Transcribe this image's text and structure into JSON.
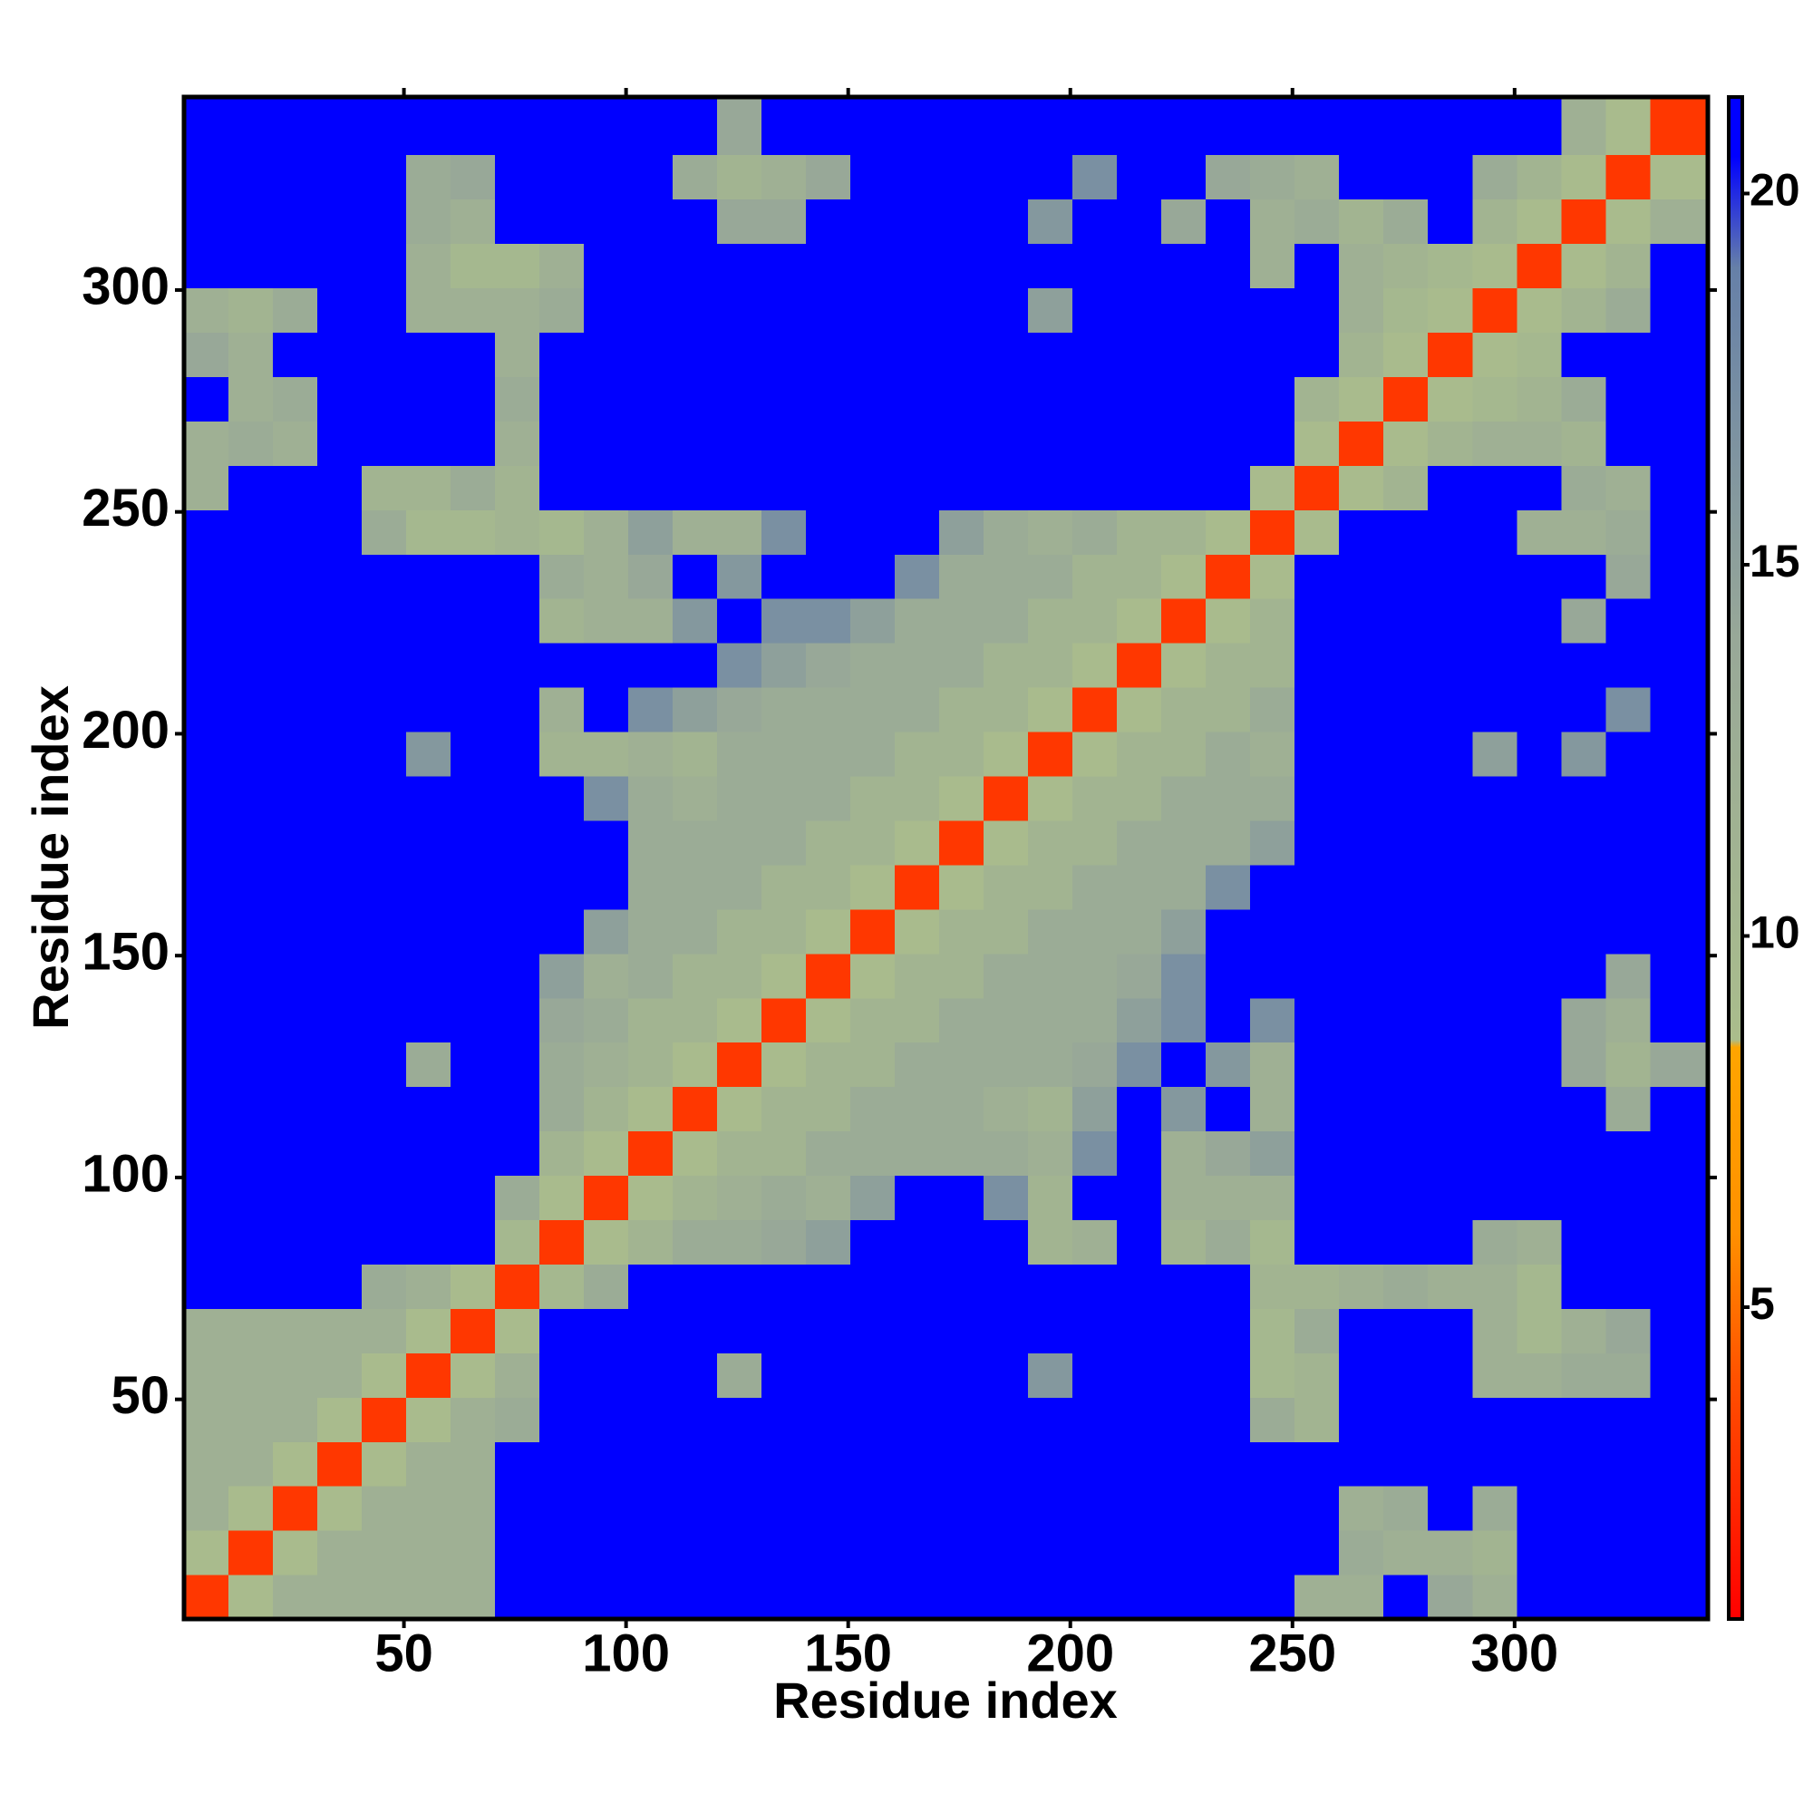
{
  "chart_data": {
    "type": "heatmap",
    "xlabel": "Residue index",
    "ylabel": "Residue index",
    "xlim": [
      0.5,
      343.5
    ],
    "ylim": [
      0.5,
      343.5
    ],
    "xticks": [
      50,
      100,
      150,
      200,
      250,
      300
    ],
    "yticks": [
      50,
      100,
      150,
      200,
      250,
      300
    ],
    "bins": [
      0.5,
      10.5,
      20.5,
      30.5,
      40.5,
      50.5,
      60.5,
      70.5,
      80.5,
      90.5,
      100.5,
      110.5,
      120.5,
      130.5,
      140.5,
      150.5,
      160.5,
      170.5,
      180.5,
      190.5,
      200.5,
      210.5,
      220.5,
      230.5,
      240.5,
      250.5,
      260.5,
      270.5,
      280.5,
      290.5,
      300.5,
      310.5,
      320.5,
      330.5,
      343.5
    ],
    "clim": [
      0.8,
      21.3
    ],
    "cticks": [
      5,
      10,
      15,
      20
    ],
    "colorscale": [
      [
        0.8,
        "#ff0000"
      ],
      [
        4,
        "#ff5000"
      ],
      [
        6,
        "#ff9000"
      ],
      [
        8.5,
        "#ffa500"
      ],
      [
        8.6,
        "#aabd8c"
      ],
      [
        14,
        "#98a898"
      ],
      [
        19,
        "#6680a8"
      ],
      [
        20.5,
        "#0000ff"
      ],
      [
        21.3,
        "#0000ff"
      ]
    ],
    "values": [
      [
        3,
        9,
        12,
        12,
        12,
        12,
        12,
        21,
        21,
        21,
        21,
        21,
        21,
        21,
        21,
        21,
        21,
        21,
        21,
        21,
        21,
        21,
        21,
        21,
        21,
        12,
        12,
        21,
        14,
        12,
        21,
        21,
        21,
        21
      ],
      [
        9,
        3,
        9,
        12,
        12,
        12,
        12,
        21,
        21,
        21,
        21,
        21,
        21,
        21,
        21,
        21,
        21,
        21,
        21,
        21,
        21,
        21,
        21,
        21,
        21,
        21,
        13,
        12,
        12,
        11,
        21,
        21,
        21,
        21
      ],
      [
        12,
        9,
        3,
        9,
        12,
        12,
        12,
        21,
        21,
        21,
        21,
        21,
        21,
        21,
        21,
        21,
        21,
        21,
        21,
        21,
        21,
        21,
        21,
        21,
        21,
        21,
        12,
        13,
        21,
        13,
        21,
        21,
        21,
        21
      ],
      [
        12,
        12,
        9,
        3,
        9,
        12,
        12,
        21,
        21,
        21,
        21,
        21,
        21,
        21,
        21,
        21,
        21,
        21,
        21,
        21,
        21,
        21,
        21,
        21,
        21,
        21,
        21,
        21,
        21,
        21,
        21,
        21,
        21,
        21
      ],
      [
        12,
        12,
        12,
        9,
        3,
        9,
        12,
        13,
        21,
        21,
        21,
        21,
        21,
        21,
        21,
        21,
        21,
        21,
        21,
        21,
        21,
        21,
        21,
        21,
        13,
        11,
        21,
        21,
        21,
        21,
        21,
        21,
        21,
        21
      ],
      [
        12,
        12,
        12,
        12,
        9,
        3,
        9,
        12,
        21,
        21,
        21,
        21,
        13,
        21,
        21,
        21,
        21,
        21,
        21,
        16,
        21,
        21,
        21,
        21,
        10,
        11,
        21,
        21,
        21,
        12,
        12,
        13,
        13,
        21
      ],
      [
        12,
        12,
        12,
        12,
        12,
        9,
        3,
        9,
        21,
        21,
        21,
        21,
        21,
        21,
        21,
        21,
        21,
        21,
        21,
        21,
        21,
        21,
        21,
        21,
        10,
        13,
        21,
        21,
        21,
        12,
        10,
        12,
        14,
        21
      ],
      [
        21,
        21,
        21,
        21,
        13,
        12,
        9,
        3,
        10,
        13,
        21,
        21,
        21,
        21,
        21,
        21,
        21,
        21,
        21,
        21,
        21,
        21,
        21,
        21,
        11,
        11,
        12,
        13,
        12,
        12,
        10,
        21,
        21,
        21
      ],
      [
        21,
        21,
        21,
        21,
        21,
        21,
        21,
        10,
        3,
        9,
        11,
        13,
        13,
        14,
        15,
        21,
        21,
        21,
        21,
        11,
        12,
        21,
        11,
        13,
        10,
        21,
        21,
        21,
        21,
        13,
        12,
        21,
        21,
        21
      ],
      [
        21,
        21,
        21,
        21,
        21,
        21,
        21,
        13,
        9,
        3,
        9,
        11,
        12,
        13,
        12,
        15,
        21,
        21,
        17,
        11,
        21,
        21,
        12,
        12,
        12,
        21,
        21,
        21,
        21,
        21,
        21,
        21,
        21,
        21
      ],
      [
        21,
        21,
        21,
        21,
        21,
        21,
        21,
        21,
        11,
        9,
        3,
        9,
        11,
        11,
        13,
        13,
        13,
        13,
        13,
        12,
        17,
        21,
        12,
        14,
        15,
        21,
        21,
        21,
        21,
        21,
        21,
        21,
        21,
        21
      ],
      [
        21,
        21,
        21,
        21,
        21,
        21,
        21,
        21,
        13,
        11,
        9,
        3,
        9,
        11,
        11,
        13,
        13,
        13,
        12,
        11,
        15,
        21,
        16,
        21,
        12,
        21,
        21,
        21,
        21,
        21,
        21,
        21,
        13,
        21
      ],
      [
        21,
        21,
        21,
        21,
        21,
        13,
        21,
        21,
        13,
        12,
        11,
        9,
        3,
        9,
        11,
        11,
        13,
        13,
        13,
        13,
        14,
        17,
        21,
        16,
        12,
        21,
        21,
        21,
        21,
        21,
        21,
        14,
        11,
        14
      ],
      [
        21,
        21,
        21,
        21,
        21,
        21,
        21,
        21,
        14,
        13,
        11,
        11,
        9,
        3,
        9,
        11,
        11,
        13,
        13,
        13,
        13,
        15,
        17,
        21,
        17,
        21,
        21,
        21,
        21,
        21,
        21,
        14,
        12,
        21
      ],
      [
        21,
        21,
        21,
        21,
        21,
        21,
        21,
        21,
        15,
        12,
        13,
        11,
        11,
        9,
        3,
        9,
        11,
        11,
        13,
        13,
        13,
        14,
        17,
        21,
        21,
        21,
        21,
        21,
        21,
        21,
        21,
        21,
        14,
        21
      ],
      [
        21,
        21,
        21,
        21,
        21,
        21,
        21,
        21,
        21,
        15,
        13,
        13,
        11,
        11,
        9,
        3,
        9,
        11,
        11,
        13,
        13,
        13,
        15,
        21,
        21,
        21,
        21,
        21,
        21,
        21,
        21,
        21,
        21,
        21
      ],
      [
        21,
        21,
        21,
        21,
        21,
        21,
        21,
        21,
        21,
        21,
        13,
        13,
        13,
        11,
        11,
        9,
        3,
        9,
        11,
        11,
        13,
        13,
        13,
        17,
        21,
        21,
        21,
        21,
        21,
        21,
        21,
        21,
        21,
        21
      ],
      [
        21,
        21,
        21,
        21,
        21,
        21,
        21,
        21,
        21,
        21,
        13,
        13,
        13,
        13,
        11,
        11,
        9,
        3,
        9,
        11,
        11,
        13,
        13,
        13,
        15,
        21,
        21,
        21,
        21,
        21,
        21,
        21,
        21,
        21
      ],
      [
        21,
        21,
        21,
        21,
        21,
        21,
        21,
        21,
        21,
        17,
        13,
        12,
        13,
        13,
        13,
        11,
        11,
        9,
        3,
        9,
        11,
        11,
        13,
        13,
        13,
        21,
        21,
        21,
        21,
        21,
        21,
        21,
        21,
        21
      ],
      [
        21,
        21,
        21,
        21,
        21,
        16,
        21,
        21,
        11,
        11,
        12,
        11,
        13,
        13,
        13,
        13,
        11,
        11,
        9,
        3,
        9,
        11,
        11,
        13,
        12,
        21,
        21,
        21,
        21,
        15,
        21,
        16,
        21,
        21
      ],
      [
        21,
        21,
        21,
        21,
        21,
        21,
        21,
        21,
        12,
        21,
        17,
        15,
        14,
        13,
        13,
        13,
        13,
        11,
        11,
        9,
        3,
        9,
        11,
        11,
        13,
        21,
        21,
        21,
        21,
        21,
        21,
        21,
        17,
        21
      ],
      [
        21,
        21,
        21,
        21,
        21,
        21,
        21,
        21,
        21,
        21,
        21,
        21,
        17,
        15,
        14,
        13,
        13,
        13,
        11,
        11,
        9,
        3,
        9,
        11,
        11,
        21,
        21,
        21,
        21,
        21,
        21,
        21,
        21,
        21
      ],
      [
        21,
        21,
        21,
        21,
        21,
        21,
        21,
        21,
        11,
        12,
        12,
        16,
        21,
        17,
        17,
        15,
        13,
        13,
        13,
        11,
        11,
        9,
        3,
        9,
        11,
        21,
        21,
        21,
        21,
        21,
        21,
        14,
        21,
        21
      ],
      [
        21,
        21,
        21,
        21,
        21,
        21,
        21,
        21,
        13,
        12,
        14,
        21,
        16,
        21,
        21,
        21,
        17,
        13,
        13,
        13,
        11,
        11,
        9,
        3,
        9,
        21,
        21,
        21,
        21,
        21,
        21,
        21,
        14,
        21
      ],
      [
        21,
        21,
        21,
        21,
        13,
        10,
        10,
        11,
        10,
        12,
        15,
        12,
        12,
        17,
        21,
        21,
        21,
        15,
        13,
        12,
        13,
        11,
        11,
        9,
        3,
        9,
        21,
        21,
        21,
        21,
        12,
        12,
        13,
        21
      ],
      [
        12,
        21,
        21,
        21,
        11,
        11,
        13,
        11,
        21,
        21,
        21,
        21,
        21,
        21,
        21,
        21,
        21,
        21,
        21,
        21,
        21,
        21,
        21,
        21,
        9,
        3,
        9,
        11,
        21,
        21,
        21,
        13,
        12,
        21
      ],
      [
        12,
        13,
        12,
        21,
        21,
        21,
        21,
        12,
        21,
        21,
        21,
        21,
        21,
        21,
        21,
        21,
        21,
        21,
        21,
        21,
        21,
        21,
        21,
        21,
        21,
        9,
        3,
        9,
        11,
        12,
        12,
        11,
        21,
        21
      ],
      [
        21,
        12,
        13,
        21,
        21,
        21,
        21,
        13,
        21,
        21,
        21,
        21,
        21,
        21,
        21,
        21,
        21,
        21,
        21,
        21,
        21,
        21,
        21,
        21,
        21,
        11,
        9,
        3,
        9,
        10,
        11,
        13,
        21,
        21
      ],
      [
        14,
        12,
        21,
        21,
        21,
        21,
        21,
        12,
        21,
        21,
        21,
        21,
        21,
        21,
        21,
        21,
        21,
        21,
        21,
        21,
        21,
        21,
        21,
        21,
        21,
        21,
        11,
        9,
        3,
        9,
        10,
        21,
        21,
        21
      ],
      [
        12,
        11,
        13,
        21,
        21,
        12,
        12,
        12,
        13,
        21,
        21,
        21,
        21,
        21,
        21,
        21,
        21,
        21,
        21,
        15,
        21,
        21,
        21,
        21,
        21,
        21,
        12,
        10,
        9,
        3,
        9,
        11,
        13,
        21
      ],
      [
        21,
        21,
        21,
        21,
        21,
        12,
        10,
        10,
        12,
        21,
        21,
        21,
        21,
        21,
        21,
        21,
        21,
        21,
        21,
        21,
        21,
        21,
        21,
        21,
        12,
        21,
        12,
        11,
        10,
        9,
        3,
        9,
        11,
        21
      ],
      [
        21,
        21,
        21,
        21,
        21,
        13,
        12,
        21,
        21,
        21,
        21,
        21,
        14,
        14,
        21,
        21,
        21,
        21,
        21,
        16,
        21,
        21,
        14,
        21,
        12,
        13,
        11,
        13,
        21,
        11,
        9,
        3,
        9,
        12
      ],
      [
        21,
        21,
        21,
        21,
        21,
        13,
        14,
        21,
        21,
        21,
        21,
        13,
        11,
        12,
        14,
        21,
        21,
        21,
        21,
        21,
        17,
        21,
        21,
        14,
        13,
        12,
        21,
        21,
        21,
        13,
        11,
        9,
        3,
        9
      ],
      [
        21,
        21,
        21,
        21,
        21,
        21,
        21,
        21,
        21,
        21,
        21,
        21,
        14,
        21,
        21,
        21,
        21,
        21,
        21,
        21,
        21,
        21,
        21,
        21,
        21,
        21,
        21,
        21,
        21,
        21,
        21,
        12,
        9,
        3
      ]
    ]
  }
}
